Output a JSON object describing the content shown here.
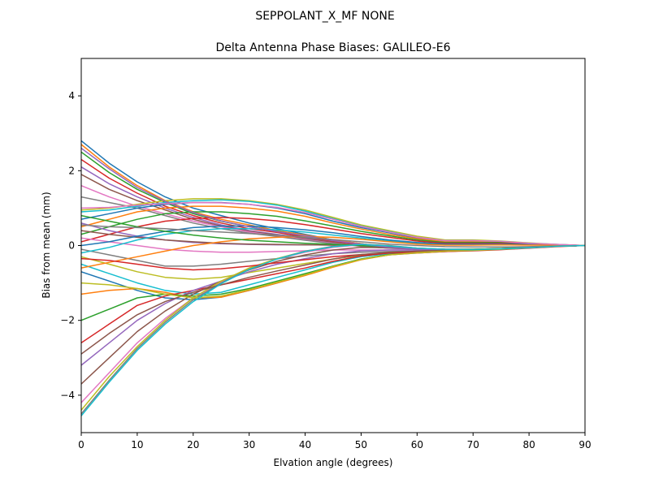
{
  "chart_data": {
    "type": "line",
    "suptitle": "SEPPOLANT_X_MF  NONE",
    "title": "Delta Antenna Phase Biases: GALILEO-E6",
    "xlabel": "Elvation angle (degrees)",
    "ylabel": "Bias from mean (mm)",
    "xlim": [
      0,
      90
    ],
    "ylim": [
      -5,
      5
    ],
    "xticks": [
      0,
      10,
      20,
      30,
      40,
      50,
      60,
      70,
      80,
      90
    ],
    "yticks": [
      -4,
      -2,
      0,
      2,
      4
    ],
    "xtick_labels": [
      "0",
      "10",
      "20",
      "30",
      "40",
      "50",
      "60",
      "70",
      "80",
      "90"
    ],
    "ytick_labels": [
      "−4",
      "−2",
      "0",
      "2",
      "4"
    ],
    "grid": false,
    "legend": "none",
    "colors": [
      "#1f77b4",
      "#ff7f0e",
      "#2ca02c",
      "#d62728",
      "#9467bd",
      "#8c564b",
      "#e377c2",
      "#7f7f7f",
      "#bcbd22",
      "#17becf"
    ],
    "x": [
      0,
      5,
      10,
      15,
      20,
      25,
      30,
      35,
      40,
      45,
      50,
      55,
      60,
      65,
      70,
      75,
      80,
      85,
      90
    ],
    "series": [
      {
        "values": [
          2.8,
          2.2,
          1.7,
          1.3,
          1.0,
          0.8,
          0.6,
          0.45,
          0.3,
          0.15,
          0.05,
          -0.05,
          -0.1,
          -0.12,
          -0.12,
          -0.1,
          -0.06,
          -0.02,
          0
        ]
      },
      {
        "values": [
          2.7,
          2.1,
          1.6,
          1.2,
          0.9,
          0.7,
          0.55,
          0.4,
          0.28,
          0.15,
          0.05,
          -0.05,
          -0.1,
          -0.12,
          -0.12,
          -0.1,
          -0.06,
          -0.02,
          0
        ]
      },
      {
        "values": [
          2.5,
          1.95,
          1.5,
          1.15,
          0.85,
          0.65,
          0.5,
          0.38,
          0.25,
          0.12,
          0.03,
          -0.05,
          -0.1,
          -0.12,
          -0.12,
          -0.1,
          -0.06,
          -0.02,
          0
        ]
      },
      {
        "values": [
          2.3,
          1.8,
          1.4,
          1.05,
          0.8,
          0.6,
          0.45,
          0.35,
          0.22,
          0.1,
          0.02,
          -0.06,
          -0.1,
          -0.12,
          -0.12,
          -0.1,
          -0.06,
          -0.02,
          0
        ]
      },
      {
        "values": [
          2.1,
          1.65,
          1.3,
          1.0,
          0.75,
          0.55,
          0.4,
          0.3,
          0.2,
          0.08,
          0.0,
          -0.06,
          -0.1,
          -0.12,
          -0.12,
          -0.1,
          -0.06,
          -0.02,
          0
        ]
      },
      {
        "values": [
          1.9,
          1.5,
          1.2,
          0.95,
          0.7,
          0.52,
          0.38,
          0.28,
          0.18,
          0.08,
          0.0,
          -0.06,
          -0.1,
          -0.12,
          -0.12,
          -0.1,
          -0.06,
          -0.02,
          0
        ]
      },
      {
        "values": [
          1.6,
          1.3,
          1.05,
          0.85,
          0.65,
          0.5,
          0.36,
          0.26,
          0.16,
          0.06,
          -0.02,
          -0.07,
          -0.1,
          -0.12,
          -0.12,
          -0.1,
          -0.06,
          -0.02,
          0
        ]
      },
      {
        "values": [
          1.3,
          1.15,
          1.0,
          0.8,
          0.6,
          0.45,
          0.33,
          0.24,
          0.14,
          0.05,
          -0.02,
          -0.07,
          -0.1,
          -0.12,
          -0.12,
          -0.1,
          -0.06,
          -0.02,
          0
        ]
      },
      {
        "values": [
          0.95,
          1.0,
          1.1,
          1.2,
          1.25,
          1.25,
          1.2,
          1.1,
          0.95,
          0.75,
          0.55,
          0.4,
          0.25,
          0.15,
          0.15,
          0.12,
          0.07,
          0.03,
          0
        ]
      },
      {
        "values": [
          0.9,
          0.95,
          1.05,
          1.15,
          1.2,
          1.22,
          1.18,
          1.08,
          0.92,
          0.72,
          0.52,
          0.37,
          0.22,
          0.13,
          0.13,
          0.11,
          0.06,
          0.03,
          0
        ]
      },
      {
        "values": [
          0.7,
          0.85,
          1.0,
          1.1,
          1.15,
          1.15,
          1.1,
          1.0,
          0.85,
          0.65,
          0.48,
          0.34,
          0.2,
          0.12,
          0.12,
          0.1,
          0.06,
          0.02,
          0
        ]
      },
      {
        "values": [
          0.5,
          0.7,
          0.9,
          1.0,
          1.05,
          1.05,
          1.0,
          0.92,
          0.78,
          0.6,
          0.44,
          0.3,
          0.18,
          0.1,
          0.1,
          0.09,
          0.05,
          0.02,
          0
        ]
      },
      {
        "values": [
          0.3,
          0.5,
          0.7,
          0.85,
          0.9,
          0.9,
          0.85,
          0.78,
          0.66,
          0.52,
          0.38,
          0.26,
          0.15,
          0.08,
          0.08,
          0.08,
          0.05,
          0.02,
          0
        ]
      },
      {
        "values": [
          0.1,
          0.3,
          0.5,
          0.65,
          0.72,
          0.75,
          0.72,
          0.66,
          0.56,
          0.44,
          0.32,
          0.22,
          0.12,
          0.06,
          0.06,
          0.06,
          0.04,
          0.02,
          0
        ]
      },
      {
        "values": [
          0.6,
          0.4,
          0.25,
          0.15,
          0.08,
          0.05,
          0.03,
          0.02,
          0.02,
          0.01,
          0.0,
          -0.04,
          -0.08,
          -0.1,
          -0.1,
          -0.08,
          -0.05,
          -0.02,
          0
        ]
      },
      {
        "values": [
          0.4,
          0.3,
          0.22,
          0.15,
          0.1,
          0.06,
          0.04,
          0.03,
          0.02,
          0.01,
          0.0,
          -0.04,
          -0.08,
          -0.1,
          -0.1,
          -0.08,
          -0.05,
          -0.02,
          0
        ]
      },
      {
        "values": [
          0.2,
          0.1,
          0.0,
          -0.1,
          -0.15,
          -0.18,
          -0.18,
          -0.16,
          -0.14,
          -0.12,
          -0.12,
          -0.12,
          -0.12,
          -0.12,
          -0.12,
          -0.1,
          -0.06,
          -0.02,
          0
        ]
      },
      {
        "values": [
          -0.1,
          -0.25,
          -0.4,
          -0.55,
          -0.55,
          -0.5,
          -0.42,
          -0.35,
          -0.28,
          -0.22,
          -0.18,
          -0.16,
          -0.15,
          -0.14,
          -0.13,
          -0.1,
          -0.06,
          -0.02,
          0
        ]
      },
      {
        "values": [
          -0.3,
          -0.5,
          -0.7,
          -0.85,
          -0.9,
          -0.85,
          -0.72,
          -0.6,
          -0.48,
          -0.36,
          -0.26,
          -0.2,
          -0.17,
          -0.15,
          -0.13,
          -0.1,
          -0.06,
          -0.02,
          0
        ]
      },
      {
        "values": [
          -0.5,
          -0.75,
          -1.0,
          -1.2,
          -1.3,
          -1.25,
          -1.05,
          -0.85,
          -0.65,
          -0.45,
          -0.3,
          -0.22,
          -0.18,
          -0.15,
          -0.13,
          -0.1,
          -0.06,
          -0.02,
          0
        ]
      },
      {
        "values": [
          -0.7,
          -0.95,
          -1.2,
          -1.4,
          -1.45,
          -1.38,
          -1.2,
          -1.0,
          -0.78,
          -0.55,
          -0.36,
          -0.25,
          -0.2,
          -0.16,
          -0.13,
          -0.1,
          -0.06,
          -0.02,
          0
        ]
      },
      {
        "values": [
          -1.3,
          -1.2,
          -1.15,
          -1.25,
          -1.4,
          -1.38,
          -1.2,
          -1.0,
          -0.8,
          -0.58,
          -0.38,
          -0.25,
          -0.2,
          -0.16,
          -0.13,
          -0.1,
          -0.06,
          -0.02,
          0
        ]
      },
      {
        "values": [
          -2.0,
          -1.7,
          -1.4,
          -1.3,
          -1.35,
          -1.3,
          -1.15,
          -0.95,
          -0.75,
          -0.55,
          -0.36,
          -0.24,
          -0.19,
          -0.15,
          -0.13,
          -0.1,
          -0.06,
          -0.02,
          0
        ]
      },
      {
        "values": [
          -2.6,
          -2.1,
          -1.6,
          -1.35,
          -1.2,
          -1.05,
          -0.9,
          -0.75,
          -0.6,
          -0.42,
          -0.28,
          -0.2,
          -0.16,
          -0.14,
          -0.12,
          -0.1,
          -0.06,
          -0.02,
          0
        ]
      },
      {
        "values": [
          -3.2,
          -2.6,
          -2.0,
          -1.55,
          -1.2,
          -0.95,
          -0.7,
          -0.5,
          -0.35,
          -0.22,
          -0.14,
          -0.12,
          -0.12,
          -0.12,
          -0.12,
          -0.1,
          -0.06,
          -0.02,
          0
        ]
      },
      {
        "values": [
          -3.7,
          -3.0,
          -2.3,
          -1.75,
          -1.3,
          -0.95,
          -0.65,
          -0.42,
          -0.25,
          -0.12,
          -0.05,
          -0.06,
          -0.1,
          -0.12,
          -0.12,
          -0.1,
          -0.06,
          -0.02,
          0
        ]
      },
      {
        "values": [
          -4.2,
          -3.4,
          -2.6,
          -1.95,
          -1.4,
          -0.98,
          -0.62,
          -0.36,
          -0.18,
          -0.05,
          0.02,
          -0.02,
          -0.08,
          -0.11,
          -0.12,
          -0.1,
          -0.06,
          -0.02,
          0
        ]
      },
      {
        "values": [
          -4.5,
          -3.6,
          -2.75,
          -2.05,
          -1.45,
          -1.0,
          -0.62,
          -0.35,
          -0.15,
          -0.02,
          0.04,
          0.0,
          -0.07,
          -0.1,
          -0.11,
          -0.09,
          -0.06,
          -0.02,
          0
        ]
      },
      {
        "values": [
          -4.4,
          -3.5,
          -2.7,
          -2.0,
          -1.4,
          -0.95,
          -0.6,
          -0.35,
          -0.16,
          -0.03,
          0.03,
          -0.01,
          -0.07,
          -0.1,
          -0.11,
          -0.09,
          -0.06,
          -0.02,
          0
        ]
      },
      {
        "values": [
          -0.2,
          -0.05,
          0.15,
          0.3,
          0.4,
          0.45,
          0.45,
          0.42,
          0.36,
          0.28,
          0.2,
          0.12,
          0.06,
          0.02,
          0.02,
          0.03,
          0.02,
          0.01,
          0
        ]
      },
      {
        "values": [
          0.0,
          0.1,
          0.25,
          0.38,
          0.48,
          0.52,
          0.52,
          0.48,
          0.42,
          0.34,
          0.24,
          0.15,
          0.08,
          0.04,
          0.04,
          0.04,
          0.03,
          0.01,
          0
        ]
      },
      {
        "values": [
          -0.6,
          -0.45,
          -0.3,
          -0.15,
          0.0,
          0.1,
          0.18,
          0.22,
          0.24,
          0.22,
          0.17,
          0.1,
          0.04,
          0.01,
          0.01,
          0.02,
          0.01,
          0.01,
          0
        ]
      },
      {
        "values": [
          0.8,
          0.65,
          0.5,
          0.38,
          0.28,
          0.2,
          0.14,
          0.1,
          0.06,
          0.03,
          0.0,
          -0.04,
          -0.08,
          -0.1,
          -0.1,
          -0.08,
          -0.05,
          -0.02,
          0
        ]
      },
      {
        "values": [
          -0.35,
          -0.4,
          -0.5,
          -0.6,
          -0.65,
          -0.62,
          -0.55,
          -0.46,
          -0.38,
          -0.3,
          -0.24,
          -0.2,
          -0.18,
          -0.16,
          -0.14,
          -0.11,
          -0.07,
          -0.03,
          0
        ]
      },
      {
        "values": [
          2.6,
          2.05,
          1.55,
          1.18,
          0.88,
          0.66,
          0.5,
          0.37,
          0.26,
          0.13,
          0.04,
          -0.05,
          -0.1,
          -0.12,
          -0.12,
          -0.1,
          -0.06,
          -0.02,
          0
        ]
      },
      {
        "values": [
          -2.9,
          -2.35,
          -1.85,
          -1.5,
          -1.25,
          -1.05,
          -0.85,
          -0.68,
          -0.52,
          -0.36,
          -0.24,
          -0.18,
          -0.15,
          -0.13,
          -0.12,
          -0.1,
          -0.06,
          -0.02,
          0
        ]
      },
      {
        "values": [
          1.0,
          1.02,
          1.08,
          1.12,
          1.15,
          1.14,
          1.1,
          1.02,
          0.88,
          0.7,
          0.51,
          0.36,
          0.22,
          0.13,
          0.13,
          0.11,
          0.06,
          0.03,
          0
        ]
      },
      {
        "values": [
          0.55,
          0.5,
          0.48,
          0.45,
          0.4,
          0.36,
          0.32,
          0.28,
          0.22,
          0.16,
          0.1,
          0.04,
          0.0,
          -0.03,
          -0.04,
          -0.04,
          -0.03,
          -0.01,
          0
        ]
      },
      {
        "values": [
          -1.0,
          -1.05,
          -1.15,
          -1.3,
          -1.4,
          -1.35,
          -1.18,
          -0.98,
          -0.78,
          -0.56,
          -0.37,
          -0.25,
          -0.19,
          -0.15,
          -0.13,
          -0.1,
          -0.06,
          -0.02,
          0
        ]
      },
      {
        "values": [
          -4.55,
          -3.65,
          -2.8,
          -2.1,
          -1.5,
          -1.02,
          -0.64,
          -0.36,
          -0.16,
          -0.03,
          0.03,
          -0.01,
          -0.07,
          -0.1,
          -0.11,
          -0.09,
          -0.06,
          -0.02,
          0
        ]
      }
    ]
  }
}
